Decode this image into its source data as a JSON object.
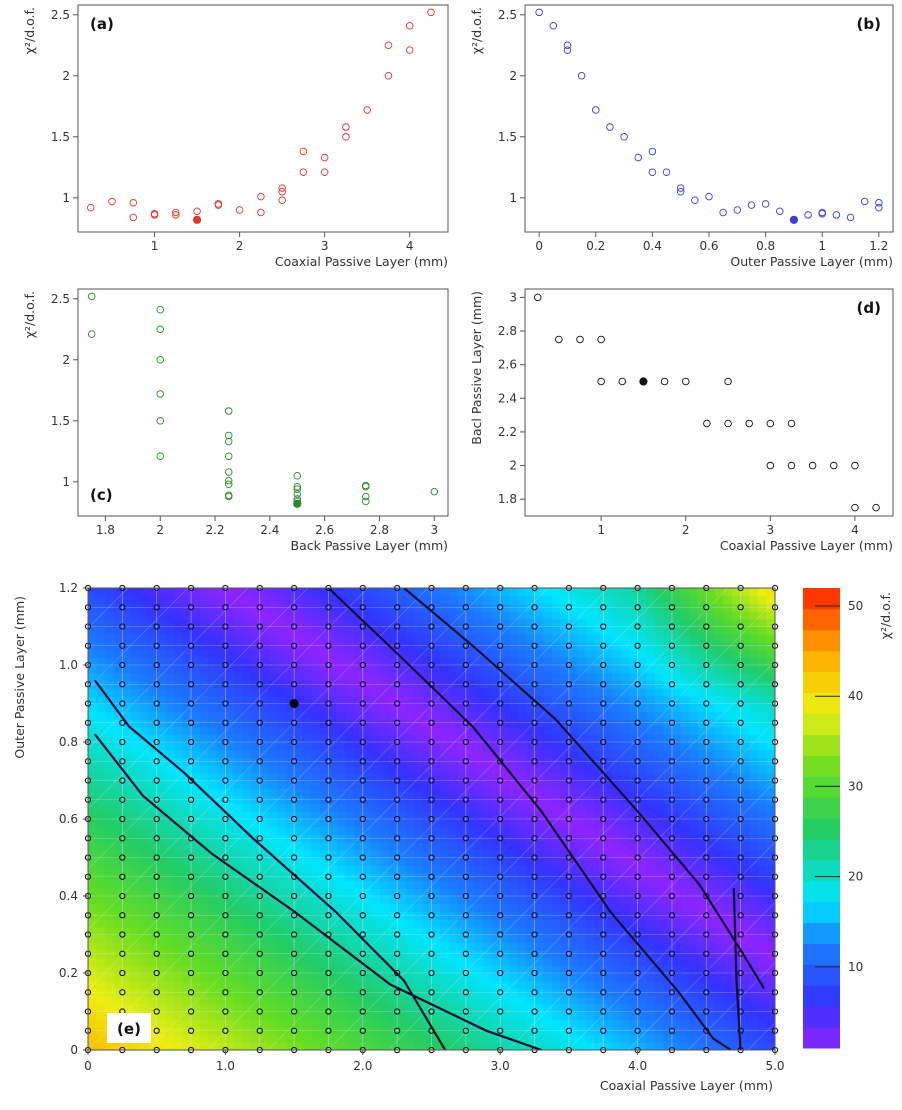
{
  "chart_data": [
    {
      "id": "a",
      "type": "scatter",
      "panel_label": "(a)",
      "xlabel": "Coaxial Passive Layer (mm)",
      "ylabel": "χ²/d.o.f.",
      "xlim": [
        0.1,
        4.45
      ],
      "ylim": [
        0.72,
        2.58
      ],
      "xticks": [
        1,
        2,
        3,
        4
      ],
      "yticks": [
        1.0,
        1.5,
        2.0,
        2.5
      ],
      "color": "#e8342a",
      "x": [
        0.25,
        0.5,
        0.75,
        0.75,
        1.0,
        1.0,
        1.25,
        1.25,
        1.5,
        1.75,
        1.75,
        2.0,
        2.25,
        2.25,
        2.5,
        2.5,
        2.5,
        2.75,
        2.75,
        3.0,
        3.0,
        3.25,
        3.25,
        3.5,
        3.75,
        3.75,
        4.0,
        4.0,
        4.25
      ],
      "y": [
        0.92,
        0.97,
        0.84,
        0.96,
        0.86,
        0.87,
        0.86,
        0.88,
        0.89,
        0.94,
        0.95,
        0.9,
        0.88,
        1.01,
        0.98,
        1.05,
        1.08,
        1.21,
        1.38,
        1.21,
        1.33,
        1.5,
        1.58,
        1.72,
        2.0,
        2.25,
        2.21,
        2.41,
        2.52
      ],
      "best": {
        "x": 1.5,
        "y": 0.82
      }
    },
    {
      "id": "b",
      "type": "scatter",
      "panel_label": "(b)",
      "xlabel": "Outer Passive Layer (mm)",
      "ylabel": "χ²/d.o.f.",
      "xlim": [
        -0.05,
        1.25
      ],
      "ylim": [
        0.72,
        2.58
      ],
      "xticks": [
        0.0,
        0.2,
        0.4,
        0.6,
        0.8,
        1.0,
        1.2
      ],
      "yticks": [
        1.0,
        1.5,
        2.0,
        2.5
      ],
      "color": "#3c3cdc",
      "x": [
        0.0,
        0.05,
        0.1,
        0.1,
        0.15,
        0.2,
        0.25,
        0.3,
        0.35,
        0.4,
        0.4,
        0.45,
        0.5,
        0.5,
        0.55,
        0.6,
        0.65,
        0.7,
        0.75,
        0.8,
        0.85,
        0.95,
        1.0,
        1.0,
        1.05,
        1.1,
        1.15,
        1.2,
        1.2
      ],
      "y": [
        2.52,
        2.41,
        2.25,
        2.21,
        2.0,
        1.72,
        1.58,
        1.5,
        1.33,
        1.38,
        1.21,
        1.21,
        1.08,
        1.05,
        0.98,
        1.01,
        0.88,
        0.9,
        0.94,
        0.95,
        0.89,
        0.86,
        0.87,
        0.88,
        0.86,
        0.84,
        0.97,
        0.96,
        0.92
      ],
      "best": {
        "x": 0.9,
        "y": 0.82
      }
    },
    {
      "id": "c",
      "type": "scatter",
      "panel_label": "(c)",
      "xlabel": "Back Passive Layer (mm)",
      "ylabel": "χ²/d.o.f.",
      "xlim": [
        1.7,
        3.05
      ],
      "ylim": [
        0.72,
        2.58
      ],
      "xticks": [
        1.8,
        2.0,
        2.2,
        2.4,
        2.6,
        2.8,
        3.0
      ],
      "yticks": [
        1.0,
        1.5,
        2.0,
        2.5
      ],
      "color": "#2a8a2a",
      "x": [
        1.75,
        1.75,
        2.0,
        2.0,
        2.0,
        2.0,
        2.0,
        2.0,
        2.25,
        2.25,
        2.25,
        2.25,
        2.25,
        2.25,
        2.25,
        2.25,
        2.25,
        2.5,
        2.5,
        2.5,
        2.5,
        2.5,
        2.5,
        2.5,
        2.75,
        2.75,
        2.75,
        2.75,
        3.0
      ],
      "y": [
        2.52,
        2.21,
        2.41,
        2.25,
        2.0,
        1.72,
        1.5,
        1.21,
        1.58,
        1.38,
        1.33,
        1.21,
        1.08,
        1.01,
        0.98,
        0.88,
        0.89,
        1.05,
        0.96,
        0.94,
        0.9,
        0.86,
        0.84,
        0.82,
        0.97,
        0.96,
        0.88,
        0.84,
        0.92
      ],
      "best": {
        "x": 2.5,
        "y": 0.82
      }
    },
    {
      "id": "d",
      "type": "scatter",
      "panel_label": "(d)",
      "xlabel": "Coaxial Passive Layer (mm)",
      "ylabel": "Bacl Passive Layer (mm)",
      "xlim": [
        0.1,
        4.45
      ],
      "ylim": [
        1.7,
        3.05
      ],
      "xticks": [
        1,
        2,
        3,
        4
      ],
      "yticks": [
        1.8,
        2.0,
        2.2,
        2.4,
        2.6,
        2.8,
        3.0
      ],
      "color": "#111111",
      "x": [
        0.25,
        0.5,
        0.75,
        1.0,
        1.0,
        1.25,
        1.5,
        1.75,
        2.0,
        2.5,
        2.25,
        2.5,
        2.75,
        3.0,
        3.25,
        3.0,
        3.25,
        3.5,
        3.75,
        4.0,
        4.0,
        4.25
      ],
      "y": [
        3.0,
        2.75,
        2.75,
        2.75,
        2.5,
        2.5,
        2.5,
        2.5,
        2.5,
        2.5,
        2.25,
        2.25,
        2.25,
        2.25,
        2.25,
        2.0,
        2.0,
        2.0,
        2.0,
        2.0,
        1.75,
        1.75
      ],
      "best": {
        "x": 1.5,
        "y": 2.5
      }
    },
    {
      "id": "e",
      "type": "heatmap",
      "panel_label": "(e)",
      "xlabel": "Coaxial Passive Layer (mm)",
      "ylabel": "Outer Passive Layer (mm)",
      "colorbar_label": "χ²/d.o.f.",
      "xlim": [
        0,
        5.0
      ],
      "ylim": [
        0,
        1.2
      ],
      "xticks": [
        0,
        1.0,
        2.0,
        3.0,
        4.0,
        5.0
      ],
      "xtick_labels": [
        "0",
        "1.0",
        "2.0",
        "3.0",
        "4.0",
        "5.0"
      ],
      "yticks": [
        0,
        0.2,
        0.4,
        0.6,
        0.8,
        1.0,
        1.2
      ],
      "ytick_labels": [
        "0",
        "0.2",
        "0.4",
        "0.6",
        "0.8",
        "1.0",
        "1.2"
      ],
      "grid_x_step": 0.25,
      "grid_y_step": 0.05,
      "colorbar_ticks": [
        10,
        20,
        30,
        40,
        50
      ],
      "colorbar_range": [
        1,
        52
      ],
      "valley_center_sum": 2.4,
      "best": {
        "x": 1.5,
        "y": 0.9
      },
      "contours": [
        [
          [
            0.05,
            0.96
          ],
          [
            0.3,
            0.84
          ],
          [
            0.7,
            0.72
          ],
          [
            1.2,
            0.55
          ],
          [
            1.8,
            0.36
          ],
          [
            2.3,
            0.18
          ],
          [
            2.6,
            0.0
          ]
        ],
        [
          [
            0.05,
            0.82
          ],
          [
            0.4,
            0.66
          ],
          [
            0.9,
            0.51
          ],
          [
            1.5,
            0.36
          ],
          [
            2.2,
            0.17
          ],
          [
            2.9,
            0.05
          ],
          [
            3.3,
            0.0
          ]
        ],
        [
          [
            1.75,
            1.2
          ],
          [
            2.25,
            1.03
          ],
          [
            2.8,
            0.84
          ],
          [
            3.3,
            0.62
          ],
          [
            3.8,
            0.36
          ],
          [
            4.3,
            0.15
          ],
          [
            4.55,
            0.03
          ],
          [
            4.68,
            0.0
          ]
        ],
        [
          [
            2.3,
            1.2
          ],
          [
            2.8,
            1.05
          ],
          [
            3.4,
            0.86
          ],
          [
            4.0,
            0.62
          ],
          [
            4.45,
            0.43
          ],
          [
            4.75,
            0.26
          ],
          [
            4.92,
            0.16
          ]
        ],
        [
          [
            4.7,
            0.42
          ],
          [
            4.72,
            0.18
          ],
          [
            4.75,
            0.0
          ]
        ]
      ]
    }
  ]
}
